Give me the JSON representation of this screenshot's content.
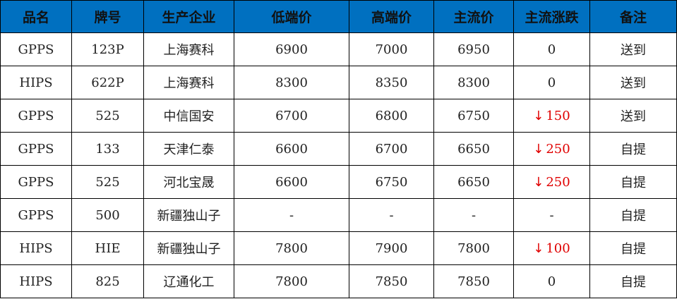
{
  "colors": {
    "header_bg": "#0070C0",
    "down": "#e00000"
  },
  "table": {
    "headers": [
      "品名",
      "牌号",
      "生产企业",
      "低端价",
      "高端价",
      "主流价",
      "主流涨跌",
      "备注"
    ],
    "rows": [
      [
        "GPPS",
        "123P",
        "上海赛科",
        "6900",
        "7000",
        "6950",
        {
          "dir": "flat",
          "value": "0"
        },
        "送到"
      ],
      [
        "HIPS",
        "622P",
        "上海赛科",
        "8300",
        "8350",
        "8300",
        {
          "dir": "flat",
          "value": "0"
        },
        "送到"
      ],
      [
        "GPPS",
        "525",
        "中信国安",
        "6700",
        "6800",
        "6750",
        {
          "dir": "down",
          "value": "150"
        },
        "送到"
      ],
      [
        "GPPS",
        "133",
        "天津仁泰",
        "6600",
        "6700",
        "6650",
        {
          "dir": "down",
          "value": "250"
        },
        "自提"
      ],
      [
        "GPPS",
        "525",
        "河北宝晟",
        "6600",
        "6750",
        "6650",
        {
          "dir": "down",
          "value": "250"
        },
        "自提"
      ],
      [
        "GPPS",
        "500",
        "新疆独山子",
        "-",
        "-",
        "-",
        {
          "dir": "flat",
          "value": "-"
        },
        "自提"
      ],
      [
        "HIPS",
        "HIE",
        "新疆独山子",
        "7800",
        "7900",
        "7800",
        {
          "dir": "down",
          "value": "100"
        },
        "自提"
      ],
      [
        "HIPS",
        "825",
        "辽通化工",
        "7800",
        "7850",
        "7850",
        {
          "dir": "flat",
          "value": "0"
        },
        "自提"
      ]
    ]
  }
}
